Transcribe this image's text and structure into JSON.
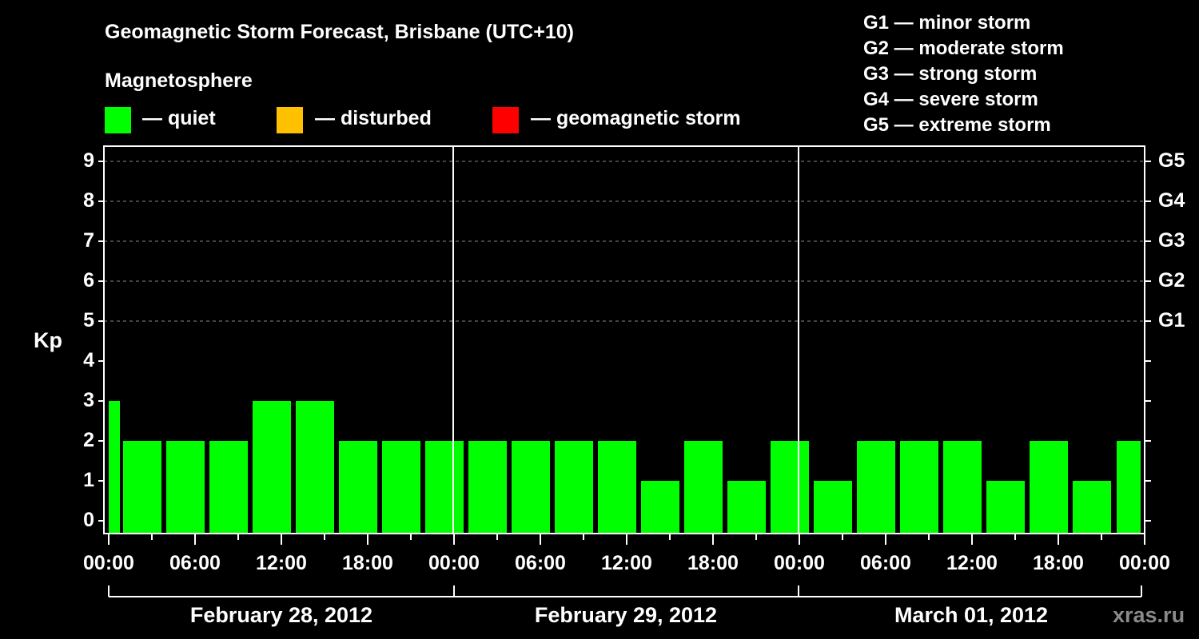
{
  "title": "Geomagnetic Storm Forecast, Brisbane (UTC+10)",
  "legend": {
    "heading": "Magnetosphere",
    "items": [
      {
        "label": "— quiet",
        "color": "#00ff00"
      },
      {
        "label": "— disturbed",
        "color": "#ffc000"
      },
      {
        "label": "— geomagnetic storm",
        "color": "#ff0000"
      }
    ]
  },
  "g_scale": [
    "G1 — minor storm",
    "G2 — moderate storm",
    "G3 — strong storm",
    "G4 — severe storm",
    "G5 — extreme storm"
  ],
  "y_axis": {
    "label": "Kp",
    "ticks": [
      "0",
      "1",
      "2",
      "3",
      "4",
      "5",
      "6",
      "7",
      "8",
      "9"
    ],
    "right_ticks": [
      {
        "kp": 5,
        "label": "G1"
      },
      {
        "kp": 6,
        "label": "G2"
      },
      {
        "kp": 7,
        "label": "G3"
      },
      {
        "kp": 8,
        "label": "G4"
      },
      {
        "kp": 9,
        "label": "G5"
      }
    ]
  },
  "x_axis": {
    "ticks": [
      "00:00",
      "06:00",
      "12:00",
      "18:00",
      "00:00",
      "06:00",
      "12:00",
      "18:00",
      "00:00",
      "06:00",
      "12:00",
      "18:00",
      "00:00"
    ],
    "dates": [
      "February 28, 2012",
      "February 29, 2012",
      "March 01, 2012"
    ]
  },
  "watermark": "xras.ru",
  "chart_data": {
    "type": "bar",
    "title": "Geomagnetic Storm Forecast, Brisbane (UTC+10)",
    "xlabel": "",
    "ylabel": "Kp",
    "ylim": [
      0,
      9
    ],
    "grid": "dashed horizontal at Kp 5-9",
    "bar_color": "#00ff00",
    "categories": [
      "Feb 28 00:00-01:00",
      "Feb 28 01:00",
      "Feb 28 04:00",
      "Feb 28 07:00",
      "Feb 28 10:00",
      "Feb 28 13:00",
      "Feb 28 16:00",
      "Feb 28 19:00",
      "Feb 28 22:00",
      "Feb 29 01:00",
      "Feb 29 04:00",
      "Feb 29 07:00",
      "Feb 29 10:00",
      "Feb 29 13:00",
      "Feb 29 16:00",
      "Feb 29 19:00",
      "Feb 29 22:00",
      "Mar 01 01:00",
      "Mar 01 04:00",
      "Mar 01 07:00",
      "Mar 01 10:00",
      "Mar 01 13:00",
      "Mar 01 16:00",
      "Mar 01 19:00",
      "Mar 01 22:00-24:00"
    ],
    "values": [
      3,
      2,
      2,
      2,
      3,
      3,
      2,
      2,
      2,
      2,
      2,
      2,
      2,
      1,
      2,
      1,
      2,
      1,
      2,
      2,
      2,
      1,
      2,
      1,
      2
    ],
    "legend": [
      "quiet",
      "disturbed",
      "geomagnetic storm"
    ]
  }
}
